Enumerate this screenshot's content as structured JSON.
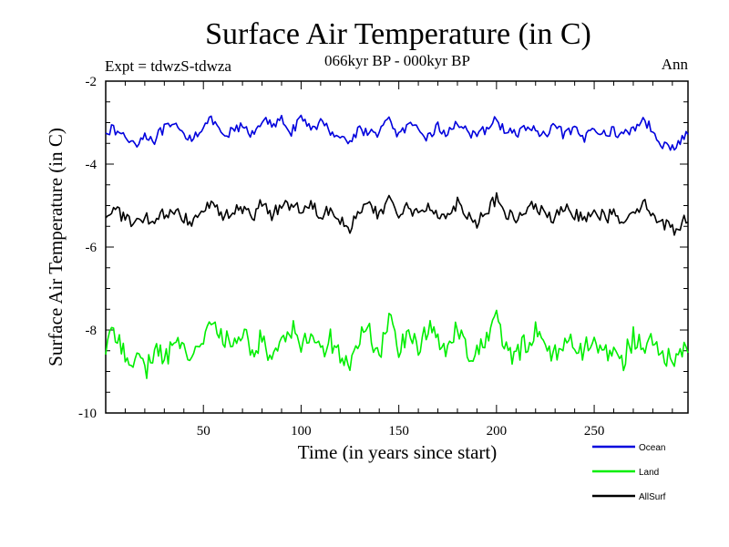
{
  "chart_data": {
    "type": "line",
    "title": "Surface Air Temperature (in C)",
    "subtitle": "066kyr BP - 000kyr BP",
    "expt_label": "Expt = tdwzS-tdwza",
    "season_label": "Ann",
    "xlabel": "Time (in years since start)",
    "ylabel": "Surface Air Temperature (in C)",
    "xlim": [
      0,
      298
    ],
    "ylim": [
      -10,
      -2
    ],
    "xticks": [
      50,
      100,
      150,
      200,
      250
    ],
    "yticks": [
      -2,
      -4,
      -6,
      -8,
      -10
    ],
    "grid": false,
    "legend_position": "bottom-right, below plot",
    "series": [
      {
        "name": "Ocean",
        "color": "#0000dd",
        "mean": -3.25,
        "noise": 0.13,
        "points": [
          [
            0,
            -3.15
          ],
          [
            5,
            -3.2
          ],
          [
            10,
            -3.35
          ],
          [
            15,
            -3.5
          ],
          [
            20,
            -3.3
          ],
          [
            25,
            -3.4
          ],
          [
            30,
            -3.15
          ],
          [
            35,
            -3.1
          ],
          [
            40,
            -3.3
          ],
          [
            45,
            -3.35
          ],
          [
            50,
            -3.05
          ],
          [
            55,
            -2.95
          ],
          [
            60,
            -3.4
          ],
          [
            65,
            -3.2
          ],
          [
            70,
            -3.1
          ],
          [
            75,
            -3.3
          ],
          [
            80,
            -2.9
          ],
          [
            85,
            -3.1
          ],
          [
            90,
            -2.95
          ],
          [
            95,
            -3.2
          ],
          [
            100,
            -2.95
          ],
          [
            105,
            -3.1
          ],
          [
            110,
            -3.0
          ],
          [
            115,
            -3.2
          ],
          [
            120,
            -3.3
          ],
          [
            125,
            -3.5
          ],
          [
            130,
            -3.1
          ],
          [
            135,
            -3.3
          ],
          [
            140,
            -3.2
          ],
          [
            145,
            -2.95
          ],
          [
            150,
            -3.3
          ],
          [
            155,
            -3.1
          ],
          [
            160,
            -3.2
          ],
          [
            165,
            -3.35
          ],
          [
            170,
            -3.1
          ],
          [
            175,
            -3.3
          ],
          [
            180,
            -2.95
          ],
          [
            185,
            -3.2
          ],
          [
            190,
            -3.4
          ],
          [
            195,
            -3.1
          ],
          [
            200,
            -2.95
          ],
          [
            205,
            -3.2
          ],
          [
            210,
            -3.3
          ],
          [
            215,
            -3.1
          ],
          [
            220,
            -3.2
          ],
          [
            225,
            -3.35
          ],
          [
            230,
            -3.1
          ],
          [
            235,
            -3.3
          ],
          [
            240,
            -3.2
          ],
          [
            245,
            -3.4
          ],
          [
            250,
            -3.05
          ],
          [
            255,
            -3.3
          ],
          [
            260,
            -3.2
          ],
          [
            265,
            -3.3
          ],
          [
            270,
            -3.15
          ],
          [
            275,
            -2.9
          ],
          [
            280,
            -3.2
          ],
          [
            285,
            -3.5
          ],
          [
            290,
            -3.65
          ],
          [
            295,
            -3.4
          ],
          [
            298,
            -3.25
          ]
        ]
      },
      {
        "name": "Land",
        "color": "#00ee00",
        "mean": -8.35,
        "noise": 0.28,
        "points": [
          [
            0,
            -8.4
          ],
          [
            5,
            -8.1
          ],
          [
            10,
            -8.5
          ],
          [
            15,
            -8.7
          ],
          [
            20,
            -9.0
          ],
          [
            25,
            -8.5
          ],
          [
            30,
            -8.7
          ],
          [
            35,
            -8.3
          ],
          [
            40,
            -8.45
          ],
          [
            45,
            -8.6
          ],
          [
            50,
            -8.1
          ],
          [
            55,
            -7.95
          ],
          [
            60,
            -8.2
          ],
          [
            65,
            -8.4
          ],
          [
            70,
            -8.0
          ],
          [
            75,
            -8.5
          ],
          [
            80,
            -8.2
          ],
          [
            85,
            -8.8
          ],
          [
            90,
            -8.1
          ],
          [
            95,
            -7.95
          ],
          [
            100,
            -8.35
          ],
          [
            105,
            -8.0
          ],
          [
            110,
            -8.5
          ],
          [
            115,
            -8.2
          ],
          [
            120,
            -8.6
          ],
          [
            125,
            -8.9
          ],
          [
            130,
            -8.2
          ],
          [
            135,
            -8.0
          ],
          [
            140,
            -8.7
          ],
          [
            145,
            -7.7
          ],
          [
            150,
            -8.4
          ],
          [
            155,
            -8.05
          ],
          [
            160,
            -8.5
          ],
          [
            165,
            -7.9
          ],
          [
            170,
            -8.3
          ],
          [
            175,
            -8.5
          ],
          [
            180,
            -7.8
          ],
          [
            185,
            -8.5
          ],
          [
            190,
            -8.6
          ],
          [
            195,
            -8.2
          ],
          [
            200,
            -7.7
          ],
          [
            205,
            -8.5
          ],
          [
            210,
            -8.7
          ],
          [
            215,
            -8.3
          ],
          [
            220,
            -8.0
          ],
          [
            225,
            -8.4
          ],
          [
            230,
            -8.6
          ],
          [
            235,
            -8.2
          ],
          [
            240,
            -8.4
          ],
          [
            245,
            -8.5
          ],
          [
            250,
            -8.1
          ],
          [
            255,
            -8.6
          ],
          [
            260,
            -8.4
          ],
          [
            265,
            -8.7
          ],
          [
            270,
            -8.2
          ],
          [
            275,
            -8.5
          ],
          [
            280,
            -8.3
          ],
          [
            285,
            -8.6
          ],
          [
            290,
            -8.8
          ],
          [
            295,
            -8.5
          ],
          [
            298,
            -8.5
          ]
        ]
      },
      {
        "name": "AllSurf",
        "color": "#000000",
        "mean": -5.25,
        "noise": 0.16,
        "points": [
          [
            0,
            -5.2
          ],
          [
            5,
            -5.1
          ],
          [
            10,
            -5.3
          ],
          [
            15,
            -5.5
          ],
          [
            20,
            -5.3
          ],
          [
            25,
            -5.4
          ],
          [
            30,
            -5.2
          ],
          [
            35,
            -5.1
          ],
          [
            40,
            -5.3
          ],
          [
            45,
            -5.35
          ],
          [
            50,
            -5.0
          ],
          [
            55,
            -4.95
          ],
          [
            60,
            -5.3
          ],
          [
            65,
            -5.15
          ],
          [
            70,
            -5.05
          ],
          [
            75,
            -5.3
          ],
          [
            80,
            -4.95
          ],
          [
            85,
            -5.2
          ],
          [
            90,
            -5.0
          ],
          [
            95,
            -4.95
          ],
          [
            100,
            -5.1
          ],
          [
            105,
            -4.95
          ],
          [
            110,
            -5.2
          ],
          [
            115,
            -5.05
          ],
          [
            120,
            -5.3
          ],
          [
            125,
            -5.55
          ],
          [
            130,
            -5.1
          ],
          [
            135,
            -5.0
          ],
          [
            140,
            -5.3
          ],
          [
            145,
            -4.8
          ],
          [
            150,
            -5.2
          ],
          [
            155,
            -5.05
          ],
          [
            160,
            -5.25
          ],
          [
            165,
            -5.0
          ],
          [
            170,
            -5.15
          ],
          [
            175,
            -5.3
          ],
          [
            180,
            -4.9
          ],
          [
            185,
            -5.2
          ],
          [
            190,
            -5.4
          ],
          [
            195,
            -5.1
          ],
          [
            200,
            -4.85
          ],
          [
            205,
            -5.2
          ],
          [
            210,
            -5.35
          ],
          [
            215,
            -5.1
          ],
          [
            220,
            -5.0
          ],
          [
            225,
            -5.25
          ],
          [
            230,
            -5.3
          ],
          [
            235,
            -5.1
          ],
          [
            240,
            -5.2
          ],
          [
            245,
            -5.3
          ],
          [
            250,
            -5.05
          ],
          [
            255,
            -5.3
          ],
          [
            260,
            -5.2
          ],
          [
            265,
            -5.35
          ],
          [
            270,
            -5.1
          ],
          [
            275,
            -4.95
          ],
          [
            280,
            -5.2
          ],
          [
            285,
            -5.4
          ],
          [
            290,
            -5.6
          ],
          [
            295,
            -5.4
          ],
          [
            298,
            -5.3
          ]
        ]
      }
    ]
  }
}
